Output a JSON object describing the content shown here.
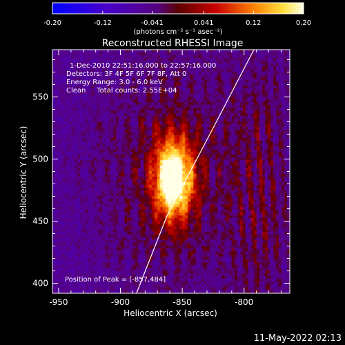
{
  "colorbar": {
    "ticks": [
      "-0.20",
      "-0.12",
      "-0.041",
      "0.041",
      "0.12",
      "0.20"
    ],
    "tick_values": [
      -0.2,
      -0.12,
      -0.041,
      0.041,
      0.12,
      0.2
    ],
    "range": [
      -0.2,
      0.2
    ],
    "unit_label": "(photons cm⁻² s⁻¹ asec⁻²)"
  },
  "title": "Reconstructed RHESSI Image",
  "info": {
    "time": "1-Dec-2010 22:51:16.000 to 22:57:16.000",
    "detectors": "Detectors: 3F 4F 5F 6F 7F 8F, Att 0",
    "energy": "Energy Range: 3.0 - 6.0 keV",
    "clean": "Clean     Total counts: 2.55E+04",
    "peak": "Position of Peak = [-857,484]"
  },
  "footer_timestamp": "11-May-2022 02:13",
  "chart_data": {
    "type": "heatmap",
    "title": "Reconstructed RHESSI Image",
    "xlabel": "Heliocentric X (arcsec)",
    "ylabel": "Heliocentric Y (arcsec)",
    "xlim": [
      -955,
      -763
    ],
    "ylim": [
      392,
      588
    ],
    "x_ticks": [
      -950,
      -900,
      -850,
      -800
    ],
    "x_tick_labels": [
      "-950",
      "-900",
      "-850",
      "-800"
    ],
    "y_ticks": [
      400,
      450,
      500,
      550
    ],
    "y_tick_labels": [
      "400",
      "450",
      "500",
      "550"
    ],
    "peak": [
      -857,
      484
    ],
    "colormap": "rhessi-heat",
    "limb_line": [
      [
        -887,
        392
      ],
      [
        -862,
        455
      ],
      [
        -825,
        525
      ],
      [
        -792,
        588
      ]
    ]
  }
}
